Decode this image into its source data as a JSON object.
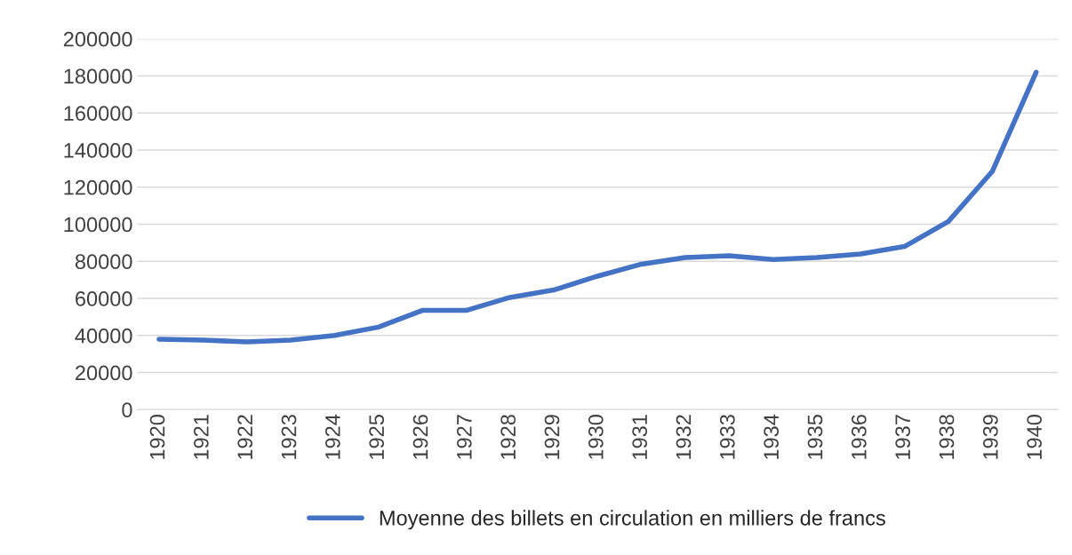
{
  "chart_data": {
    "type": "line",
    "categories": [
      "1920",
      "1921",
      "1922",
      "1923",
      "1924",
      "1925",
      "1926",
      "1927",
      "1928",
      "1929",
      "1930",
      "1931",
      "1932",
      "1933",
      "1934",
      "1935",
      "1936",
      "1937",
      "1938",
      "1939",
      "1940"
    ],
    "series": [
      {
        "name": "Moyenne des billets en circulation en milliers de francs",
        "color": "#4472c4",
        "values": [
          38000,
          37500,
          36500,
          37500,
          40000,
          44500,
          53500,
          53500,
          60500,
          64500,
          72000,
          78500,
          82000,
          83000,
          81000,
          82000,
          84000,
          88000,
          101500,
          128500,
          182000
        ]
      }
    ],
    "ylim": [
      0,
      200000
    ],
    "yticks": [
      0,
      20000,
      40000,
      60000,
      80000,
      100000,
      120000,
      140000,
      160000,
      180000,
      200000
    ],
    "grid": "y",
    "legend": "bottom",
    "marker": "none",
    "line_style": "solid"
  }
}
